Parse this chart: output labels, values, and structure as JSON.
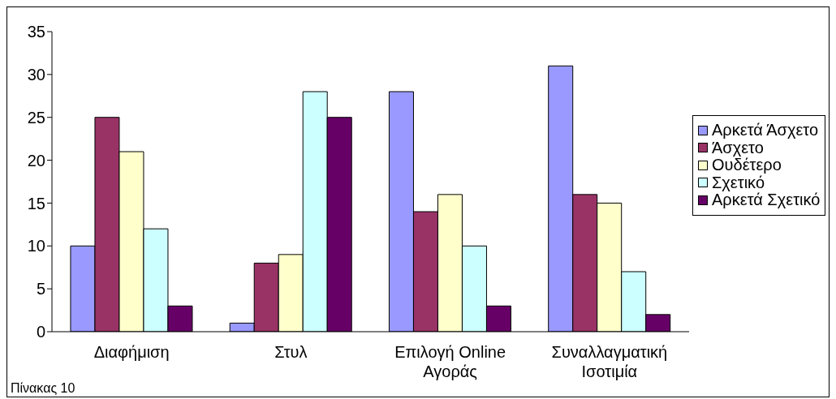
{
  "chart_data": {
    "type": "bar",
    "categories": [
      "Διαφήμιση",
      "Στυλ",
      "Επιλογή Online Αγοράς",
      "Συναλλαγματική Ισοτιμία"
    ],
    "series": [
      {
        "name": "Αρκετά Άσχετο",
        "color": "#9999ff",
        "values": [
          10,
          1,
          28,
          31
        ]
      },
      {
        "name": "Άσχετο",
        "color": "#993366",
        "values": [
          25,
          8,
          14,
          16
        ]
      },
      {
        "name": "Ουδέτερο",
        "color": "#ffffcc",
        "values": [
          21,
          9,
          16,
          15
        ]
      },
      {
        "name": "Σχετικό",
        "color": "#ccffff",
        "values": [
          12,
          28,
          10,
          7
        ]
      },
      {
        "name": "Αρκετά Σχετικό",
        "color": "#660066",
        "values": [
          3,
          25,
          3,
          2
        ]
      }
    ],
    "ylim": [
      0,
      35
    ],
    "yticks": [
      0,
      5,
      10,
      15,
      20,
      25,
      30,
      35
    ],
    "grid": false,
    "legend": "right",
    "annotations": [
      "Πίνακας 10"
    ]
  }
}
